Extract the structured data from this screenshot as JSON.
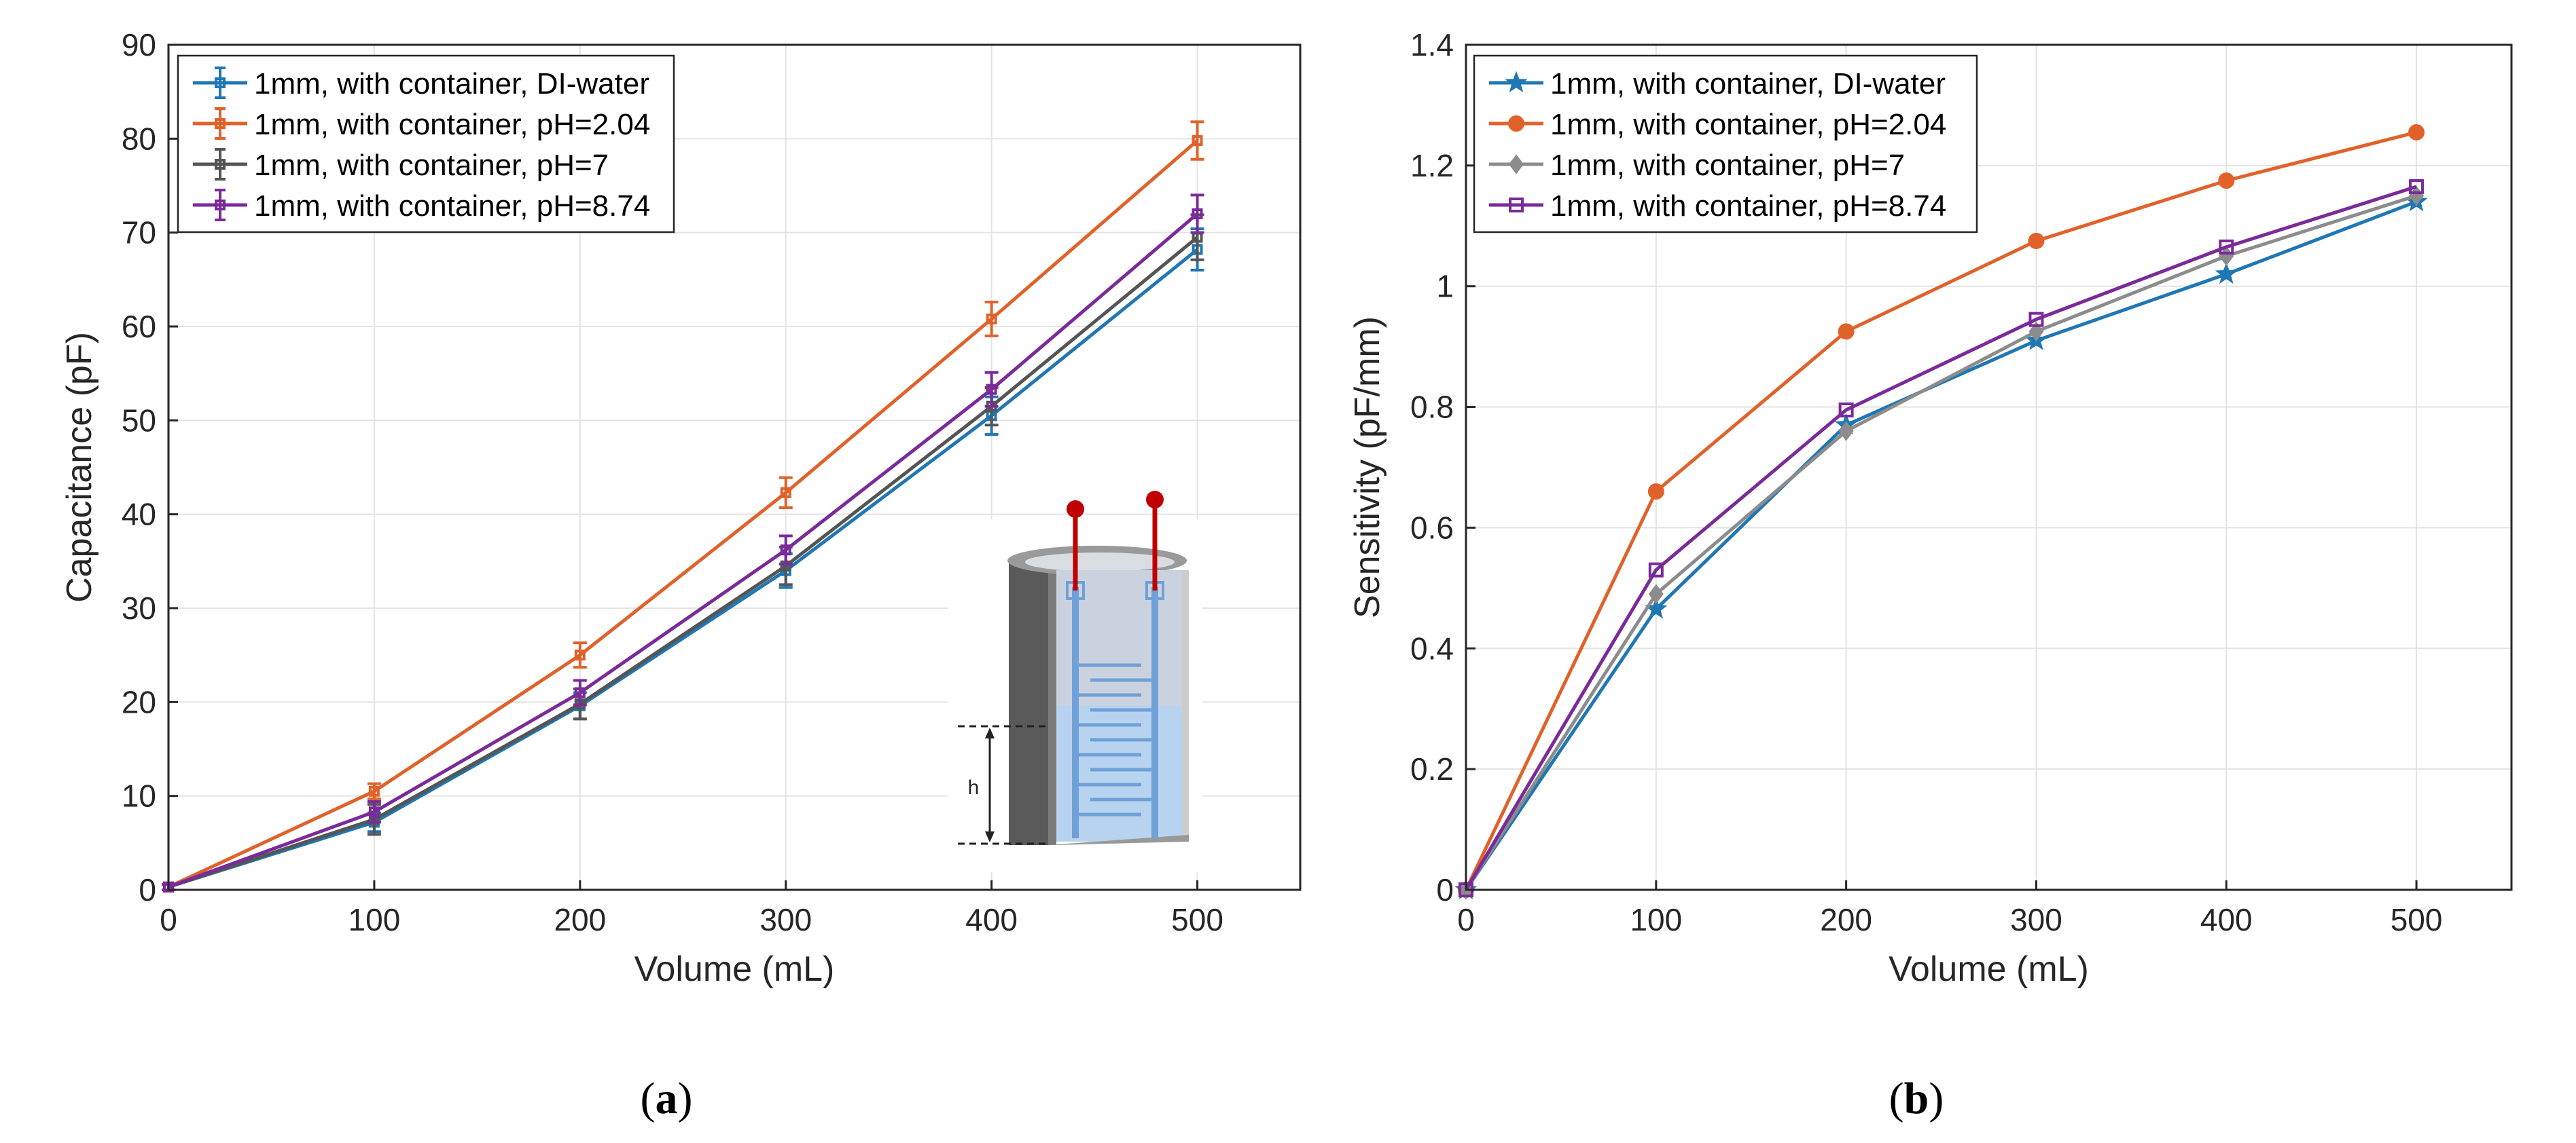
{
  "colors": {
    "blue": "#1f77b4",
    "orange": "#e0622a",
    "gray": "#555555",
    "gray_b": "#8c8c8c",
    "purple": "#7b2a9a",
    "grid": "#e3e3e3",
    "axis": "#262626",
    "electrode_red": "#c00000",
    "water_blue": "#b7d3ef",
    "electrode_blue": "#6fa0d8"
  },
  "chart_data": [
    {
      "id": "a",
      "type": "line",
      "panel_label": "a",
      "xlabel": "Volume (mL)",
      "ylabel": "Capacitance (pF)",
      "xlim": [
        0,
        550
      ],
      "ylim": [
        0,
        90
      ],
      "xticks": [
        0,
        100,
        200,
        300,
        400,
        500
      ],
      "yticks": [
        0,
        10,
        20,
        30,
        40,
        50,
        60,
        70,
        80,
        90
      ],
      "grid": true,
      "legend_position": "top-left",
      "x": [
        0,
        100,
        200,
        300,
        400,
        500
      ],
      "series": [
        {
          "name": "1mm, with container, DI-water",
          "color": "blue",
          "marker": "square",
          "values": [
            0.3,
            7.2,
            19.6,
            34.0,
            50.5,
            68.2
          ],
          "errors": [
            0.3,
            1.0,
            1.4,
            1.8,
            2.0,
            2.2
          ]
        },
        {
          "name": "1mm, with container, pH=2.04",
          "color": "orange",
          "marker": "square",
          "values": [
            0.3,
            10.5,
            25.0,
            42.3,
            60.8,
            79.8
          ],
          "errors": [
            0.3,
            0.8,
            1.3,
            1.6,
            1.8,
            2.0
          ]
        },
        {
          "name": "1mm, with container, pH=7",
          "color": "gray",
          "marker": "square",
          "values": [
            0.3,
            7.5,
            19.8,
            34.5,
            51.5,
            69.5
          ],
          "errors": [
            0.3,
            1.6,
            1.6,
            2.0,
            2.0,
            2.4
          ]
        },
        {
          "name": "1mm, with container, pH=8.74",
          "color": "purple",
          "marker": "square",
          "values": [
            0.3,
            8.3,
            21.0,
            36.2,
            53.3,
            72.0
          ],
          "errors": [
            0.3,
            1.1,
            1.3,
            1.5,
            1.8,
            2.0
          ]
        }
      ],
      "inset": {
        "label": "h"
      }
    },
    {
      "id": "b",
      "type": "line",
      "panel_label": "b",
      "xlabel": "Volume (mL)",
      "ylabel": "Sensitivity (pF/mm)",
      "xlim": [
        0,
        550
      ],
      "ylim": [
        0,
        1.4
      ],
      "xticks": [
        0,
        100,
        200,
        300,
        400,
        500
      ],
      "yticks": [
        0,
        0.2,
        0.4,
        0.6,
        0.8,
        1,
        1.2,
        1.4
      ],
      "ytick_labels": [
        "0",
        "0.2",
        "0.4",
        "0.6",
        "0.8",
        "1",
        "1.2",
        "1.4"
      ],
      "grid": true,
      "legend_position": "top-left",
      "x": [
        0,
        100,
        200,
        300,
        400,
        500
      ],
      "series": [
        {
          "name": "1mm, with container, DI-water",
          "color": "blue",
          "marker": "star",
          "values": [
            0,
            0.465,
            0.77,
            0.91,
            1.02,
            1.14
          ]
        },
        {
          "name": "1mm, with container, pH=2.04",
          "color": "orange",
          "marker": "circle",
          "values": [
            0,
            0.66,
            0.925,
            1.075,
            1.175,
            1.255
          ]
        },
        {
          "name": "1mm, with container, pH=7",
          "color": "gray_b",
          "marker": "diamond",
          "values": [
            0,
            0.49,
            0.76,
            0.925,
            1.05,
            1.15
          ]
        },
        {
          "name": "1mm, with container, pH=8.74",
          "color": "purple",
          "marker": "square",
          "values": [
            0,
            0.53,
            0.795,
            0.945,
            1.065,
            1.165
          ]
        }
      ]
    }
  ]
}
